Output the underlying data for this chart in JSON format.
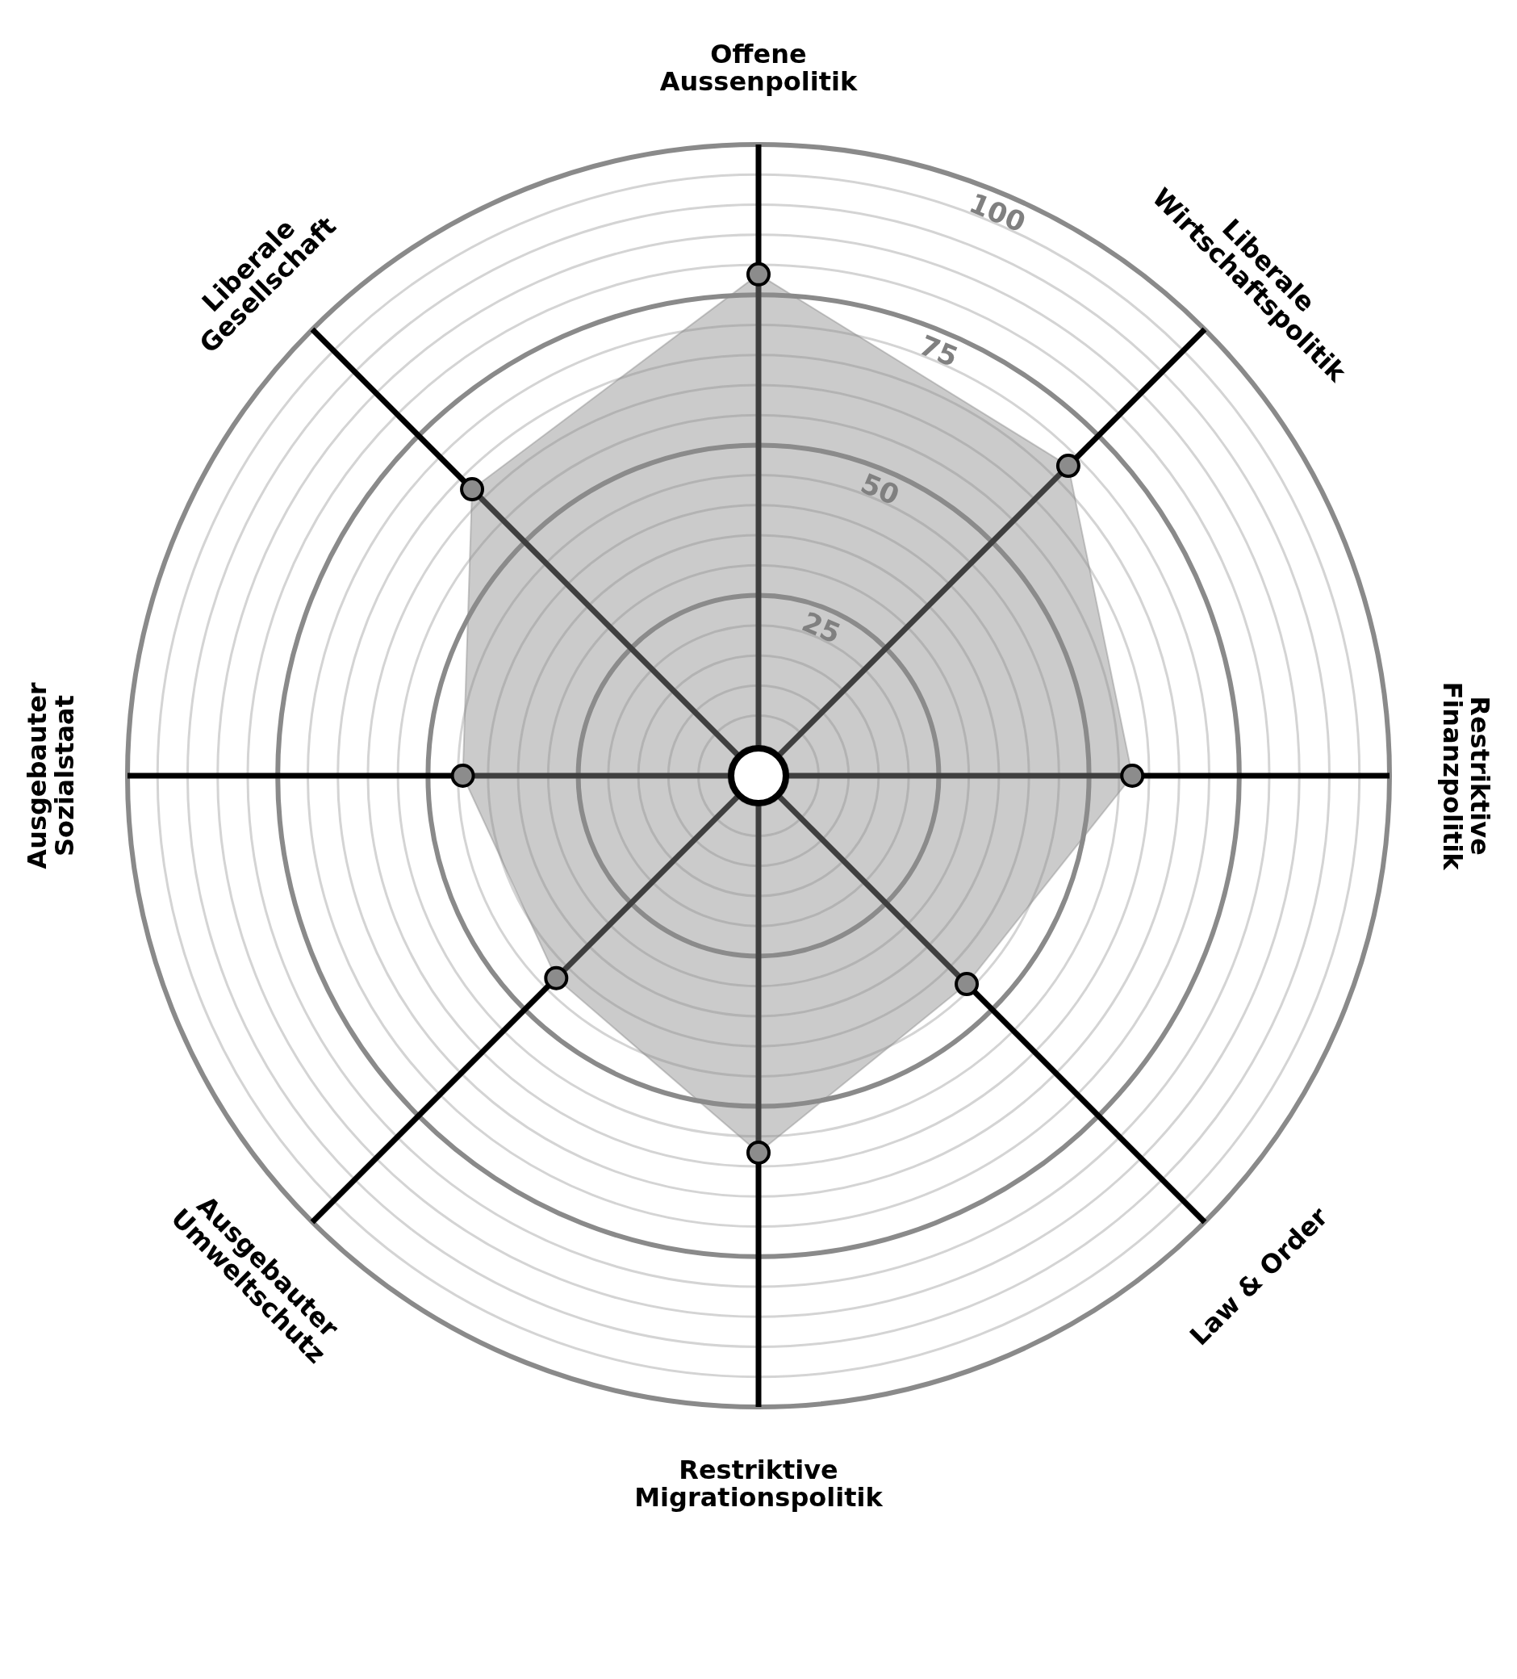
{
  "chart_data": {
    "type": "radar",
    "categories": [
      "Offene Aussenpolitik",
      "Liberale Wirtschaftspolitik",
      "Restriktive Finanzpolitik",
      "Law & Order",
      "Restriktive Migrationspolitik",
      "Ausgebauter Umweltschutz",
      "Ausgebauter Sozialstaat",
      "Liberale Gesellschaft"
    ],
    "series": [
      {
        "color": "#8c8c8c",
        "values": [
          78.4,
          67.9,
          57.2,
          44,
          57.7,
          42.6,
          44.2,
          62.4
        ]
      }
    ],
    "ylim": [
      -5,
      100
    ],
    "yticks": [
      25,
      50,
      75,
      100
    ],
    "grid": true,
    "marker": "circle"
  }
}
